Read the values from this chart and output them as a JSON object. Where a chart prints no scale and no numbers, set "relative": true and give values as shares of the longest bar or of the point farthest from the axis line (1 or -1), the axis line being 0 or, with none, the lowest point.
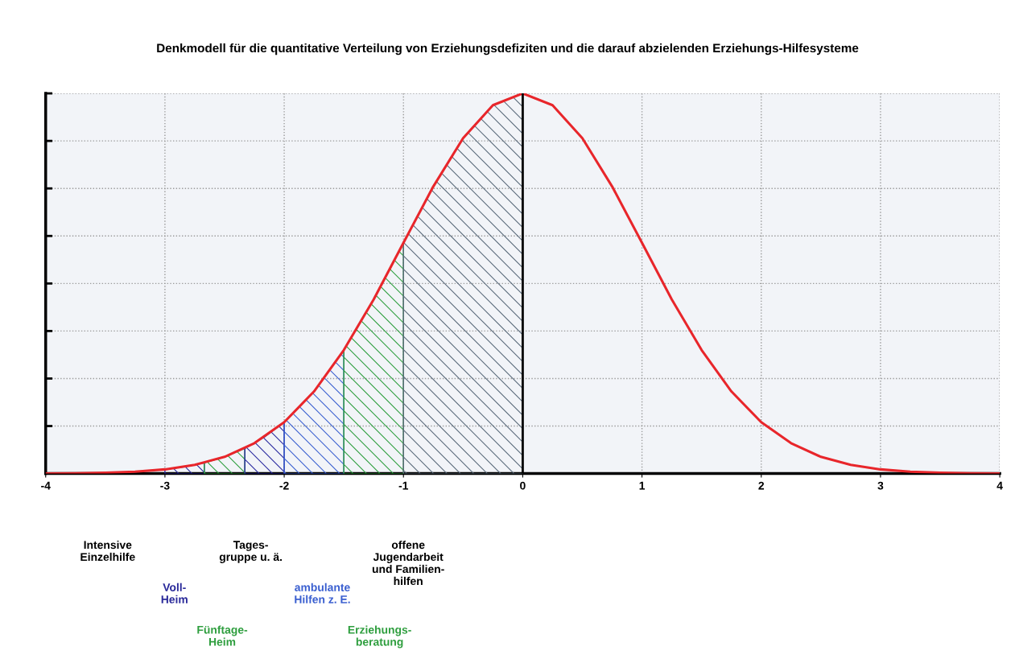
{
  "chart_data": {
    "type": "line",
    "title": "Denkmodell für die quantitative Verteilung von Erziehungsdefiziten und die darauf abzielenden Erziehungs-Hilfesysteme",
    "relative": true,
    "xlim": [
      -4,
      4
    ],
    "xticks": [
      -4,
      -3,
      -2,
      -1,
      0,
      1,
      2,
      3,
      4
    ],
    "grid": true,
    "legend": false,
    "tick_labels": "x",
    "marker": "none",
    "line_style": "solid",
    "ref_lines": [
      {
        "axis": "x",
        "value": 0,
        "color": "#000000"
      }
    ],
    "annotations": [
      "Intensive\nEinzelhilfe",
      "Voll-\nHeim",
      "Fünftage-\nHeim",
      "Tages-\ngruppe u. ä.",
      "ambulante\nHilfen z. E.",
      "Erziehungs-\nberatung",
      "offene\nJugendarbeit\nund Familien-\nhilfen"
    ],
    "series": [
      {
        "color": "#e8262b",
        "x": [
          -4,
          -3.75,
          -3.5,
          -3.25,
          -3,
          -2.75,
          -2.5,
          -2.25,
          -2,
          -1.75,
          -1.5,
          -1.25,
          -1,
          -0.75,
          -0.5,
          -0.25,
          0,
          0.25,
          0.5,
          0.75,
          1,
          1.25,
          1.5,
          1.75,
          2,
          2.25,
          2.5,
          2.75,
          3,
          3.25,
          3.5,
          3.75,
          4
        ],
        "values": [
          0.0003,
          0.0009,
          0.0022,
          0.0051,
          0.011,
          0.023,
          0.044,
          0.08,
          0.135,
          0.216,
          0.325,
          0.458,
          0.607,
          0.755,
          0.882,
          0.969,
          1,
          0.969,
          0.882,
          0.755,
          0.607,
          0.458,
          0.325,
          0.216,
          0.135,
          0.08,
          0.044,
          0.023,
          0.011,
          0.0051,
          0.0022,
          0.0009,
          0.0003
        ]
      },
      {
        "type": "area",
        "color": "#2a2a9a",
        "x": [
          -3,
          -2.83,
          -2.67
        ],
        "values": [
          0.011,
          0.018,
          0.028
        ]
      },
      {
        "type": "area",
        "color": "#2e9e3e",
        "x": [
          -2.67,
          -2.5,
          -2.33
        ],
        "values": [
          0.028,
          0.044,
          0.066
        ]
      },
      {
        "type": "area",
        "color": "#2a2aa0",
        "x": [
          -2.33,
          -2.17,
          -2
        ],
        "values": [
          0.066,
          0.095,
          0.135
        ]
      },
      {
        "type": "area",
        "color": "#3a5fd0",
        "x": [
          -2,
          -1.75,
          -1.5
        ],
        "values": [
          0.135,
          0.216,
          0.325
        ]
      },
      {
        "type": "area",
        "color": "#2e9e3e",
        "x": [
          -1.5,
          -1.25,
          -1
        ],
        "values": [
          0.325,
          0.458,
          0.607
        ]
      },
      {
        "type": "area",
        "color": "#5a6a7a",
        "x": [
          -1,
          -0.75,
          -0.5,
          -0.25,
          0
        ],
        "values": [
          0.607,
          0.755,
          0.882,
          0.969,
          1
        ]
      }
    ]
  }
}
